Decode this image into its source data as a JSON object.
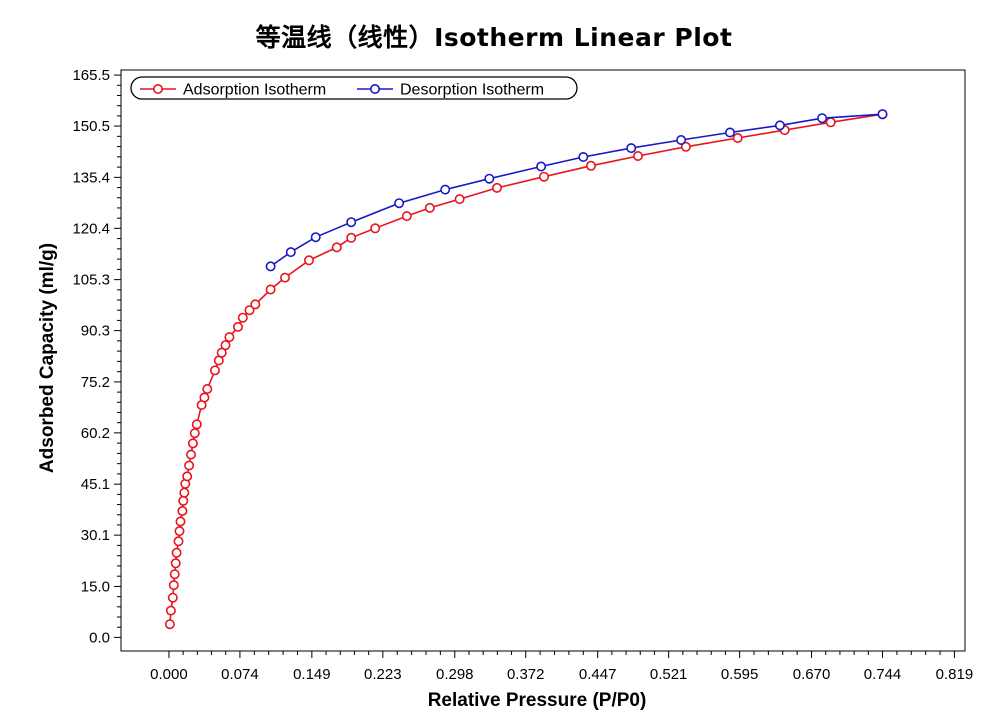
{
  "chart_data": {
    "type": "line",
    "title": "等温线（线性）Isotherm Linear Plot",
    "xlabel": "Relative Pressure (P/P0)",
    "ylabel": "Adsorbed Capacity (ml/g)",
    "xlim": [
      -0.05,
      0.83
    ],
    "ylim": [
      -4,
      167
    ],
    "x_ticks": [
      "0.000",
      "0.074",
      "0.149",
      "0.223",
      "0.298",
      "0.372",
      "0.447",
      "0.521",
      "0.595",
      "0.670",
      "0.744",
      "0.819"
    ],
    "y_ticks": [
      "0.0",
      "15.0",
      "30.1",
      "45.1",
      "60.2",
      "75.2",
      "90.3",
      "105.3",
      "120.4",
      "135.4",
      "150.5",
      "165.5"
    ],
    "legend_position": "top-left",
    "grid": false,
    "series": [
      {
        "name": "Adsorption Isotherm",
        "color": "#e8141e",
        "marker": "open-circle",
        "points": [
          [
            0.001,
            3.9
          ],
          [
            0.002,
            7.9
          ],
          [
            0.004,
            11.7
          ],
          [
            0.005,
            15.4
          ],
          [
            0.006,
            18.6
          ],
          [
            0.007,
            21.8
          ],
          [
            0.008,
            24.9
          ],
          [
            0.01,
            28.3
          ],
          [
            0.011,
            31.3
          ],
          [
            0.012,
            34.1
          ],
          [
            0.014,
            37.2
          ],
          [
            0.015,
            40.2
          ],
          [
            0.016,
            42.6
          ],
          [
            0.017,
            45.2
          ],
          [
            0.019,
            47.4
          ],
          [
            0.021,
            50.6
          ],
          [
            0.023,
            53.8
          ],
          [
            0.025,
            57.1
          ],
          [
            0.027,
            60.1
          ],
          [
            0.029,
            62.7
          ],
          [
            0.034,
            68.4
          ],
          [
            0.037,
            70.6
          ],
          [
            0.04,
            73.1
          ],
          [
            0.048,
            78.6
          ],
          [
            0.052,
            81.5
          ],
          [
            0.055,
            83.8
          ],
          [
            0.059,
            86.0
          ],
          [
            0.063,
            88.4
          ],
          [
            0.072,
            91.4
          ],
          [
            0.077,
            94.1
          ],
          [
            0.084,
            96.3
          ],
          [
            0.09,
            98.0
          ],
          [
            0.106,
            102.4
          ],
          [
            0.121,
            105.9
          ],
          [
            0.146,
            111.0
          ],
          [
            0.175,
            114.8
          ],
          [
            0.19,
            117.6
          ],
          [
            0.215,
            120.4
          ],
          [
            0.248,
            124.0
          ],
          [
            0.272,
            126.4
          ],
          [
            0.303,
            129.0
          ],
          [
            0.342,
            132.3
          ],
          [
            0.391,
            135.6
          ],
          [
            0.44,
            138.8
          ],
          [
            0.489,
            141.7
          ],
          [
            0.539,
            144.4
          ],
          [
            0.593,
            147.0
          ],
          [
            0.642,
            149.3
          ],
          [
            0.69,
            151.6
          ],
          [
            0.744,
            154.0
          ]
        ]
      },
      {
        "name": "Desorption Isotherm",
        "color": "#1818c8",
        "marker": "open-circle",
        "points": [
          [
            0.106,
            109.2
          ],
          [
            0.127,
            113.4
          ],
          [
            0.153,
            117.8
          ],
          [
            0.19,
            122.2
          ],
          [
            0.24,
            127.8
          ],
          [
            0.288,
            131.8
          ],
          [
            0.334,
            135.0
          ],
          [
            0.388,
            138.6
          ],
          [
            0.432,
            141.4
          ],
          [
            0.482,
            144.0
          ],
          [
            0.534,
            146.4
          ],
          [
            0.585,
            148.6
          ],
          [
            0.637,
            150.7
          ],
          [
            0.681,
            152.8
          ],
          [
            0.744,
            154.0
          ]
        ]
      }
    ]
  }
}
